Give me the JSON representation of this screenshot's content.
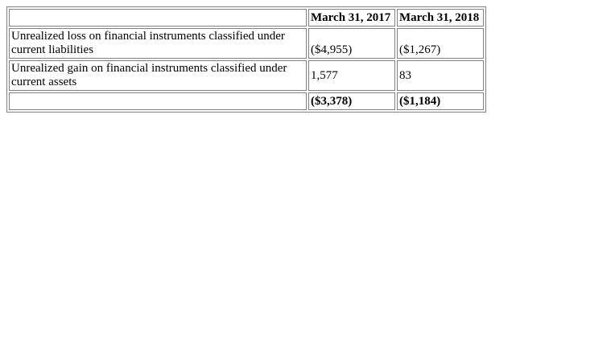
{
  "table": {
    "header": [
      "",
      "March 31, 2017",
      "March 31, 2018"
    ],
    "rows": [
      {
        "label": "Unrealized loss on financial instruments classified under current liabilities",
        "values": [
          "($4,955)",
          "($1,267)"
        ]
      },
      {
        "label": "Unrealized gain on financial instruments classified under current assets",
        "values": [
          "1,577",
          "83"
        ]
      }
    ],
    "total": {
      "label": "",
      "values": [
        "($3,378)",
        "($1,184)"
      ]
    }
  }
}
